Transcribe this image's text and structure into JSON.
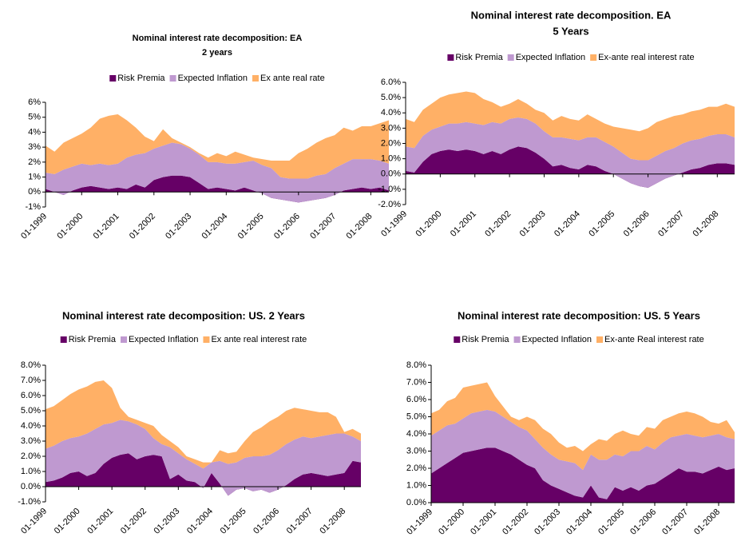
{
  "chart_data": [
    {
      "type": "area",
      "stacked": true,
      "title": "Nominal interest rate decomposition: EA",
      "subtitle": "2 years",
      "categories": [
        "01-1999",
        null,
        null,
        null,
        "01-2000",
        null,
        null,
        null,
        "01-2001",
        null,
        null,
        null,
        "01-2002",
        null,
        null,
        null,
        "01-2003",
        null,
        null,
        null,
        "01-2004",
        null,
        null,
        null,
        "01-2005",
        null,
        null,
        null,
        "01-2006",
        null,
        null,
        null,
        "01-2007",
        null,
        null,
        null,
        "01-2008",
        null,
        null
      ],
      "series": [
        {
          "name": "Risk Premia",
          "color": "#660066",
          "values": [
            0.2,
            0,
            -0.2,
            0.1,
            0.3,
            0.4,
            0.3,
            0.2,
            0.3,
            0.2,
            0.5,
            0.3,
            0.8,
            1.0,
            1.1,
            1.1,
            1.0,
            0.6,
            0.2,
            0.3,
            0.2,
            0.1,
            0.3,
            0.1,
            -0.1,
            -0.4,
            -0.5,
            -0.6,
            -0.7,
            -0.6,
            -0.5,
            -0.4,
            -0.2,
            0.1,
            0.2,
            0.3,
            0.2,
            0.3,
            0.1
          ]
        },
        {
          "name": "Expected Inflation",
          "color": "#bf99d0",
          "values": [
            1.1,
            1.2,
            1.7,
            1.6,
            1.6,
            1.4,
            1.6,
            1.6,
            1.6,
            2.1,
            2.0,
            2.3,
            2.1,
            2.1,
            2.2,
            2.1,
            1.9,
            1.9,
            1.8,
            1.7,
            1.7,
            1.8,
            1.7,
            2.0,
            1.9,
            2.0,
            1.5,
            1.5,
            1.6,
            1.5,
            1.6,
            1.6,
            1.8,
            1.8,
            2.0,
            1.9,
            2.0,
            1.8,
            1.8
          ]
        },
        {
          "name": "Ex ante real rate",
          "color": "#ffb066",
          "values": [
            1.8,
            1.5,
            1.8,
            1.9,
            2.0,
            2.5,
            3.0,
            3.3,
            3.3,
            2.5,
            1.8,
            1.1,
            0.5,
            1.1,
            0.3,
            0.1,
            0.1,
            0.1,
            0.3,
            0.6,
            0.5,
            0.8,
            0.5,
            0.2,
            0.4,
            0.5,
            1.1,
            1.2,
            1.7,
            2.0,
            2.2,
            2.4,
            2.2,
            2.4,
            1.9,
            2.2,
            2.2,
            2.5,
            2.9
          ]
        }
      ],
      "ylim": [
        -1,
        6
      ],
      "yticks": [
        {
          "value": -1,
          "label": "-1%"
        },
        {
          "value": 0,
          "label": "0%"
        },
        {
          "value": 1,
          "label": "1%"
        },
        {
          "value": 2,
          "label": "2%"
        },
        {
          "value": 3,
          "label": "3%"
        },
        {
          "value": 4,
          "label": "4%"
        },
        {
          "value": 5,
          "label": "5%"
        },
        {
          "value": 6,
          "label": "6%"
        }
      ],
      "legend": "top",
      "grid": false
    },
    {
      "type": "area",
      "stacked": true,
      "title": "Nominal interest rate decomposition. EA",
      "subtitle": "5 Years",
      "categories": [
        "01-1999",
        null,
        null,
        null,
        "01-2000",
        null,
        null,
        null,
        "01-2001",
        null,
        null,
        null,
        "01-2002",
        null,
        null,
        null,
        "01-2003",
        null,
        null,
        null,
        "01-2004",
        null,
        null,
        null,
        "01-2005",
        null,
        null,
        null,
        "01-2006",
        null,
        null,
        null,
        "01-2007",
        null,
        null,
        null,
        "01-2008",
        null,
        null
      ],
      "series": [
        {
          "name": "Risk Premia",
          "color": "#660066",
          "values": [
            0.2,
            0.1,
            0.8,
            1.3,
            1.5,
            1.6,
            1.5,
            1.6,
            1.5,
            1.3,
            1.5,
            1.3,
            1.6,
            1.8,
            1.7,
            1.4,
            1.0,
            0.5,
            0.6,
            0.4,
            0.3,
            0.6,
            0.5,
            0.2,
            0.0,
            -0.3,
            -0.6,
            -0.8,
            -0.9,
            -0.6,
            -0.3,
            -0.1,
            0.1,
            0.3,
            0.4,
            0.6,
            0.7,
            0.7,
            0.6
          ]
        },
        {
          "name": "Expected Inflation",
          "color": "#bf99d0",
          "values": [
            1.6,
            1.6,
            1.7,
            1.6,
            1.6,
            1.7,
            1.8,
            1.8,
            1.8,
            1.9,
            1.9,
            2.0,
            2.0,
            1.9,
            1.9,
            1.9,
            1.8,
            1.9,
            1.8,
            1.9,
            1.9,
            1.8,
            1.9,
            1.9,
            1.8,
            1.7,
            1.6,
            1.7,
            1.8,
            1.8,
            1.8,
            1.8,
            1.9,
            1.9,
            1.9,
            1.9,
            1.9,
            1.9,
            1.8
          ]
        },
        {
          "name": "Ex-ante real interest rate",
          "color": "#ffb066",
          "values": [
            1.8,
            1.7,
            1.7,
            1.7,
            1.9,
            1.9,
            2.0,
            2.0,
            2.0,
            1.7,
            1.3,
            1.1,
            1.0,
            1.2,
            1.0,
            0.9,
            1.2,
            1.1,
            1.4,
            1.3,
            1.3,
            1.5,
            1.2,
            1.2,
            1.3,
            1.6,
            1.9,
            1.9,
            2.1,
            2.2,
            2.1,
            2.1,
            1.9,
            1.9,
            1.9,
            1.9,
            1.8,
            2.0,
            2.0
          ]
        }
      ],
      "ylim": [
        -2,
        6
      ],
      "yticks": [
        {
          "value": -2,
          "label": "-2.0%"
        },
        {
          "value": -1,
          "label": "-1.0%"
        },
        {
          "value": 0,
          "label": "0.0%"
        },
        {
          "value": 1,
          "label": "1.0%"
        },
        {
          "value": 2,
          "label": "2.0%"
        },
        {
          "value": 3,
          "label": "3.0%"
        },
        {
          "value": 4,
          "label": "4.0%"
        },
        {
          "value": 5,
          "label": "5.0%"
        },
        {
          "value": 6,
          "label": "6.0%"
        }
      ],
      "legend": "top",
      "grid": false
    },
    {
      "type": "area",
      "stacked": true,
      "title": "Nominal interest rate decomposition: US. 2 Years",
      "categories": [
        "01-1999",
        null,
        null,
        null,
        "01-2000",
        null,
        null,
        null,
        "01-2001",
        null,
        null,
        null,
        "01-2002",
        null,
        null,
        null,
        "01-2003",
        null,
        null,
        null,
        "01-2004",
        null,
        null,
        null,
        "01-2005",
        null,
        null,
        null,
        "01-2006",
        null,
        null,
        null,
        "01-2007",
        null,
        null,
        null,
        "01-2008",
        null,
        null
      ],
      "series": [
        {
          "name": "Risk Premia",
          "color": "#660066",
          "values": [
            0.3,
            0.4,
            0.6,
            0.9,
            1.0,
            0.7,
            0.9,
            1.5,
            1.9,
            2.1,
            2.2,
            1.8,
            2.0,
            2.1,
            2.0,
            0.5,
            0.8,
            0.4,
            0.3,
            -0.1,
            0.9,
            0.2,
            -0.6,
            -0.2,
            -0.1,
            -0.3,
            -0.2,
            -0.4,
            -0.2,
            0.1,
            0.5,
            0.8,
            0.9,
            0.8,
            0.7,
            0.8,
            0.9,
            1.7,
            1.6
          ]
        },
        {
          "name": "Expected Inflation",
          "color": "#bf99d0",
          "values": [
            2.2,
            2.3,
            2.4,
            2.3,
            2.3,
            2.8,
            2.9,
            2.6,
            2.3,
            2.3,
            2.1,
            2.3,
            1.8,
            1.1,
            0.8,
            2.1,
            1.4,
            1.4,
            1.2,
            1.3,
            0.7,
            1.5,
            2.1,
            1.8,
            2.0,
            2.3,
            2.2,
            2.5,
            2.6,
            2.7,
            2.6,
            2.5,
            2.3,
            2.5,
            2.7,
            2.7,
            2.6,
            1.6,
            1.4
          ]
        },
        {
          "name": "Ex ante real interest rate",
          "color": "#ffb066",
          "values": [
            2.6,
            2.6,
            2.7,
            2.9,
            3.1,
            3.1,
            3.1,
            2.9,
            2.3,
            0.8,
            0.3,
            0.3,
            0.4,
            0.8,
            0.6,
            0.4,
            0.4,
            0.2,
            0.3,
            0.4,
            0.0,
            0.7,
            0.7,
            0.7,
            1.1,
            1.6,
            1.9,
            2.2,
            2.2,
            2.2,
            2.1,
            1.8,
            1.8,
            1.6,
            1.5,
            1.1,
            0.1,
            0.5,
            0.5
          ]
        }
      ],
      "ylim": [
        -1,
        8
      ],
      "yticks": [
        {
          "value": -1,
          "label": "-1.0%"
        },
        {
          "value": 0,
          "label": "0.0%"
        },
        {
          "value": 1,
          "label": "1.0%"
        },
        {
          "value": 2,
          "label": "2.0%"
        },
        {
          "value": 3,
          "label": "3.0%"
        },
        {
          "value": 4,
          "label": "4.0%"
        },
        {
          "value": 5,
          "label": "5.0%"
        },
        {
          "value": 6,
          "label": "6.0%"
        },
        {
          "value": 7,
          "label": "7.0%"
        },
        {
          "value": 8,
          "label": "8.0%"
        }
      ],
      "legend": "top",
      "grid": false
    },
    {
      "type": "area",
      "stacked": true,
      "title": "Nominal interest rate decomposition: US. 5 Years",
      "categories": [
        "01-1999",
        null,
        null,
        null,
        "01-2000",
        null,
        null,
        null,
        "01-2001",
        null,
        null,
        null,
        "01-2002",
        null,
        null,
        null,
        "01-2003",
        null,
        null,
        null,
        "01-2004",
        null,
        null,
        null,
        "01-2005",
        null,
        null,
        null,
        "01-2006",
        null,
        null,
        null,
        "01-2007",
        null,
        null,
        null,
        "01-2008",
        null,
        null
      ],
      "series": [
        {
          "name": "Risk Premia",
          "color": "#660066",
          "values": [
            1.7,
            2.0,
            2.3,
            2.6,
            2.9,
            3.0,
            3.1,
            3.2,
            3.2,
            3.0,
            2.8,
            2.5,
            2.2,
            2.0,
            1.3,
            1.0,
            0.8,
            0.6,
            0.4,
            0.3,
            1.0,
            0.3,
            0.2,
            0.9,
            0.7,
            0.9,
            0.7,
            1.0,
            1.1,
            1.4,
            1.7,
            2.0,
            1.8,
            1.8,
            1.7,
            1.9,
            2.1,
            1.9,
            2.0
          ]
        },
        {
          "name": "Expected Inflation",
          "color": "#bf99d0",
          "values": [
            2.2,
            2.2,
            2.2,
            2.0,
            2.0,
            2.2,
            2.2,
            2.2,
            2.1,
            2.0,
            1.9,
            1.9,
            2.0,
            1.7,
            1.9,
            1.8,
            1.7,
            1.8,
            1.9,
            1.6,
            1.8,
            2.2,
            2.3,
            1.9,
            2.0,
            2.1,
            2.3,
            2.3,
            2.0,
            2.1,
            2.1,
            1.9,
            2.2,
            2.1,
            2.1,
            2.0,
            1.9,
            1.9,
            1.7
          ]
        },
        {
          "name": "Ex-ante Real interest rate",
          "color": "#ffb066",
          "values": [
            1.3,
            1.2,
            1.4,
            1.5,
            1.8,
            1.6,
            1.6,
            1.6,
            0.9,
            0.6,
            0.3,
            0.4,
            0.8,
            1.1,
            1.1,
            1.2,
            1.0,
            0.8,
            1.0,
            1.1,
            0.6,
            1.2,
            1.1,
            1.2,
            1.5,
            1.0,
            0.9,
            1.1,
            1.2,
            1.3,
            1.2,
            1.3,
            1.3,
            1.3,
            1.2,
            0.8,
            0.6,
            1.0,
            0.4
          ]
        }
      ],
      "ylim": [
        0,
        8
      ],
      "yticks": [
        {
          "value": 0,
          "label": "0.0%"
        },
        {
          "value": 1,
          "label": "1.0%"
        },
        {
          "value": 2,
          "label": "2.0%"
        },
        {
          "value": 3,
          "label": "3.0%"
        },
        {
          "value": 4,
          "label": "4.0%"
        },
        {
          "value": 5,
          "label": "5.0%"
        },
        {
          "value": 6,
          "label": "6.0%"
        },
        {
          "value": 7,
          "label": "7.0%"
        },
        {
          "value": 8,
          "label": "8.0%"
        }
      ],
      "legend": "top",
      "grid": false
    }
  ]
}
